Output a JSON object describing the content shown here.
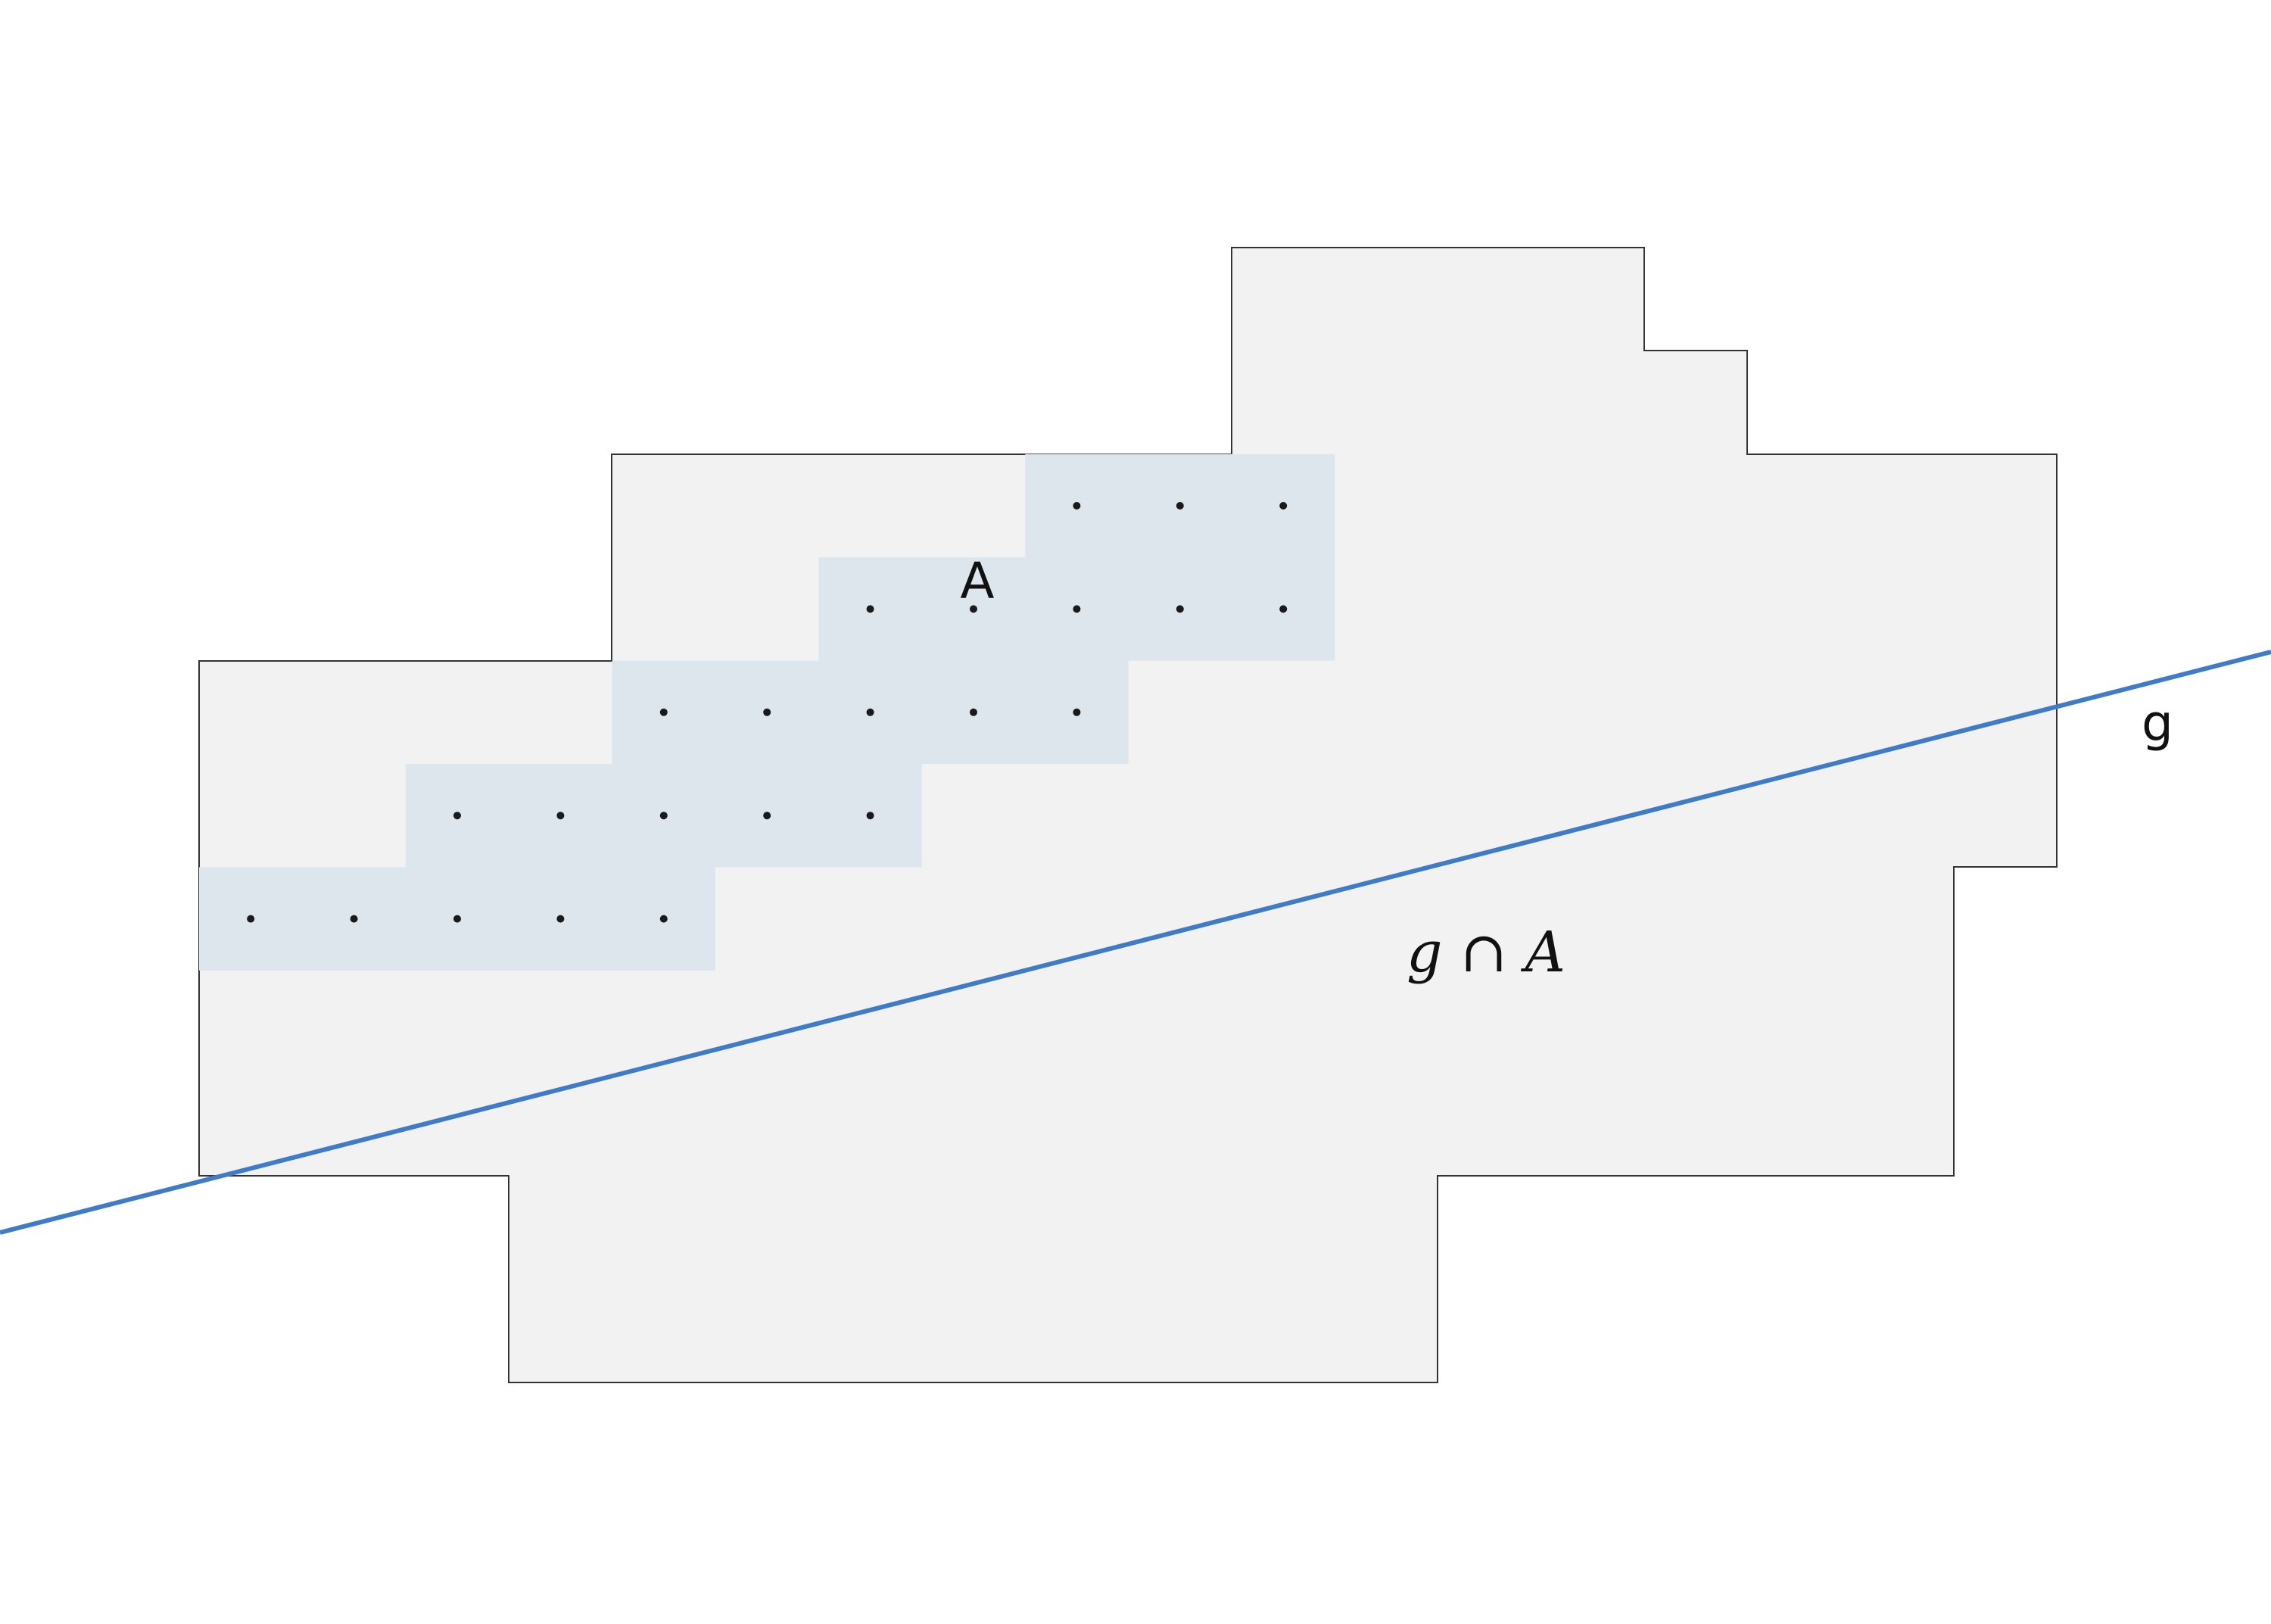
{
  "labels": {
    "set": "A",
    "line": "g",
    "intersection": "g ∩ A"
  },
  "colors": {
    "region_fill": "#f2f2f2",
    "region_stroke": "#333333",
    "cell_fill": "#dde5ed",
    "line": "#3f7bc6",
    "point": "#1a1a1a"
  }
}
